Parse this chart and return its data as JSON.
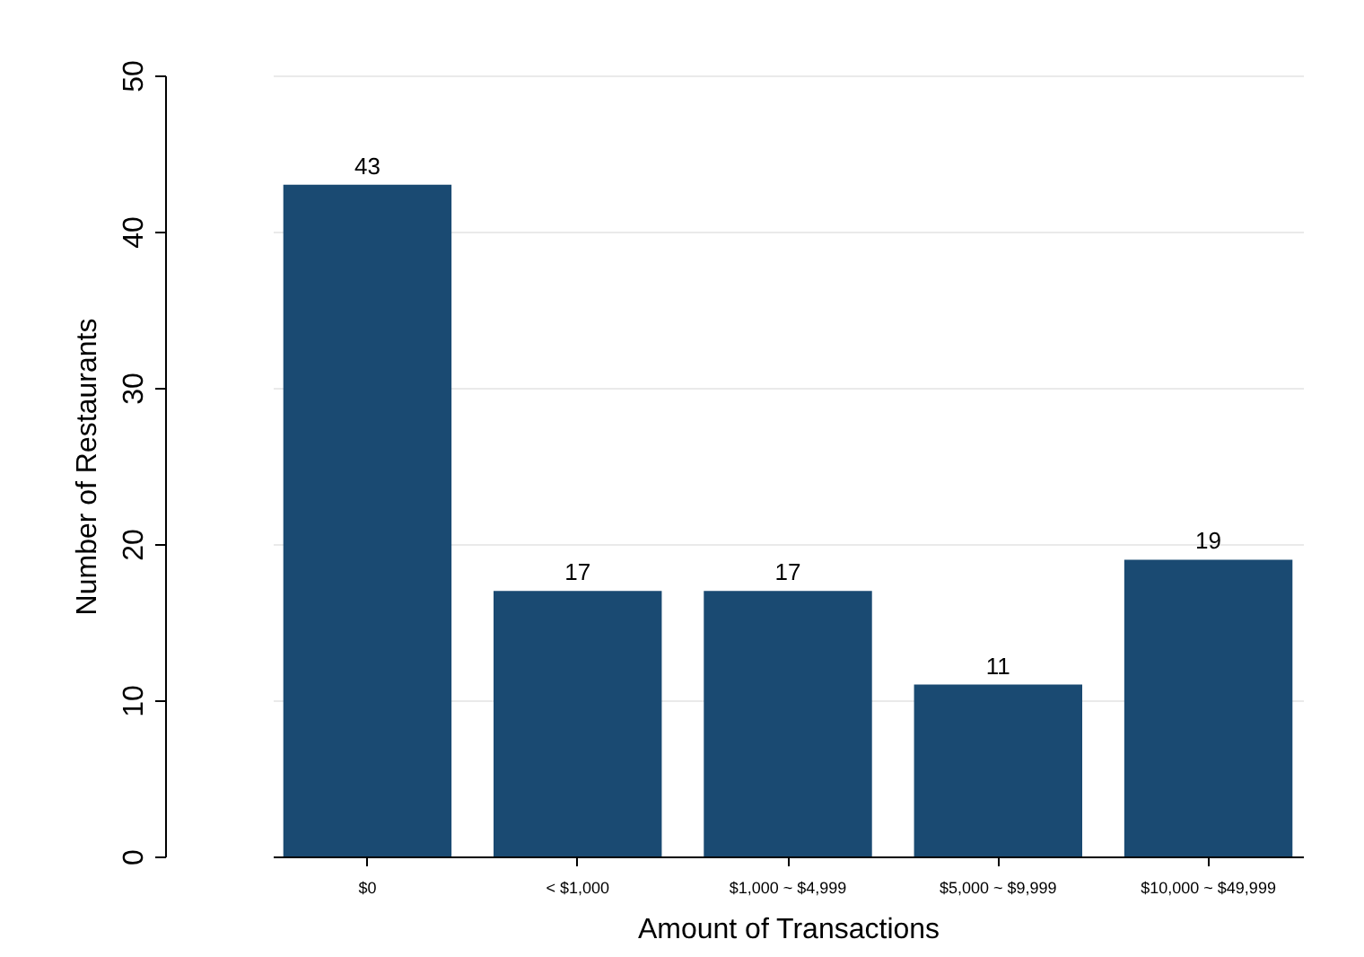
{
  "chart_data": {
    "type": "bar",
    "xlabel": "Amount of Transactions",
    "ylabel": "Number of Restaurants",
    "categories": [
      "$0",
      "< $1,000",
      "$1,000 ~ $4,999",
      "$5,000 ~ $9,999",
      "$10,000 ~ $49,999"
    ],
    "values": [
      43,
      17,
      17,
      11,
      19
    ],
    "color": "#1a4a72",
    "ylim": [
      0,
      50
    ],
    "yticks": [
      0,
      10,
      20,
      30,
      40,
      50
    ],
    "grid": "y",
    "data_labels": true
  }
}
